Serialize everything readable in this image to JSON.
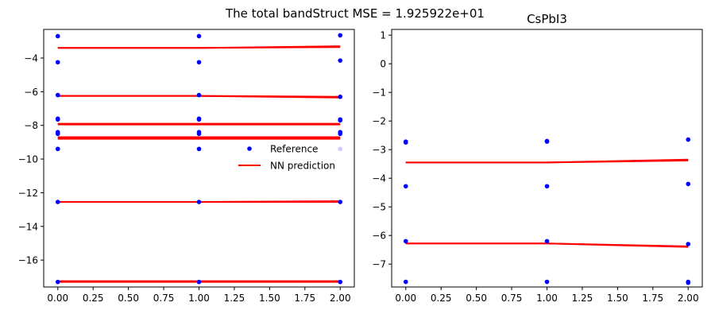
{
  "suptitle": "The total bandStruct MSE = 1.925922e+01",
  "colors": {
    "reference": "#0000ff",
    "prediction": "#ff0000"
  },
  "chart_data": [
    {
      "type": "line",
      "title": "",
      "xlabel": "",
      "ylabel": "",
      "xlim": [
        -0.1,
        2.1
      ],
      "ylim": [
        -17.6,
        -2.3
      ],
      "x_ticks": [
        0.0,
        0.25,
        0.5,
        0.75,
        1.0,
        1.25,
        1.5,
        1.75,
        2.0
      ],
      "x_tick_labels": [
        "0.00",
        "0.25",
        "0.50",
        "0.75",
        "1.00",
        "1.25",
        "1.50",
        "1.75",
        "2.00"
      ],
      "y_ticks": [
        -16,
        -14,
        -12,
        -10,
        -8,
        -6,
        -4
      ],
      "y_tick_labels": [
        "−16",
        "−14",
        "−12",
        "−10",
        "−8",
        "−6",
        "−4"
      ],
      "grid": false,
      "legend": {
        "placement": "center-right",
        "entries": [
          {
            "label": "Reference",
            "style": "marker"
          },
          {
            "label": "NN prediction",
            "style": "line"
          }
        ]
      },
      "series": [
        {
          "name": "Reference",
          "style": "scatter",
          "points": [
            [
              0,
              -2.7
            ],
            [
              0,
              -4.25
            ],
            [
              0,
              -6.2
            ],
            [
              0,
              -7.6
            ],
            [
              0,
              -7.65
            ],
            [
              0,
              -8.4
            ],
            [
              0,
              -8.5
            ],
            [
              0,
              -9.4
            ],
            [
              0,
              -12.55
            ],
            [
              0,
              -17.3
            ],
            [
              1,
              -2.7
            ],
            [
              1,
              -4.25
            ],
            [
              1,
              -6.2
            ],
            [
              1,
              -7.6
            ],
            [
              1,
              -7.65
            ],
            [
              1,
              -8.4
            ],
            [
              1,
              -8.5
            ],
            [
              1,
              -9.4
            ],
            [
              1,
              -12.55
            ],
            [
              1,
              -17.3
            ],
            [
              2,
              -2.65
            ],
            [
              2,
              -4.15
            ],
            [
              2,
              -6.3
            ],
            [
              2,
              -7.65
            ],
            [
              2,
              -7.7
            ],
            [
              2,
              -8.4
            ],
            [
              2,
              -8.5
            ],
            [
              2,
              -9.4
            ],
            [
              2,
              -12.55
            ],
            [
              2,
              -17.3
            ]
          ]
        },
        {
          "name": "NN prediction",
          "style": "lines",
          "lines": [
            {
              "x": [
                0,
                1,
                2
              ],
              "y": [
                -3.4,
                -3.4,
                -3.3
              ]
            },
            {
              "x": [
                0,
                1,
                2
              ],
              "y": [
                -3.4,
                -3.4,
                -3.35
              ]
            },
            {
              "x": [
                0,
                1,
                2
              ],
              "y": [
                -6.25,
                -6.25,
                -6.35
              ]
            },
            {
              "x": [
                0,
                1,
                2
              ],
              "y": [
                -6.25,
                -6.25,
                -6.3
              ]
            },
            {
              "x": [
                0,
                1,
                2
              ],
              "y": [
                -7.9,
                -7.9,
                -7.9
              ]
            },
            {
              "x": [
                0,
                1,
                2
              ],
              "y": [
                -7.95,
                -7.95,
                -7.95
              ]
            },
            {
              "x": [
                0,
                1,
                2
              ],
              "y": [
                -8.7,
                -8.7,
                -8.7
              ]
            },
            {
              "x": [
                0,
                1,
                2
              ],
              "y": [
                -8.75,
                -8.75,
                -8.75
              ]
            },
            {
              "x": [
                0,
                1,
                2
              ],
              "y": [
                -8.8,
                -8.8,
                -8.8
              ]
            },
            {
              "x": [
                0,
                1,
                2
              ],
              "y": [
                -12.55,
                -12.55,
                -12.5
              ]
            },
            {
              "x": [
                0,
                1,
                2
              ],
              "y": [
                -12.55,
                -12.55,
                -12.55
              ]
            },
            {
              "x": [
                0,
                1,
                2
              ],
              "y": [
                -17.25,
                -17.25,
                -17.25
              ]
            },
            {
              "x": [
                0,
                1,
                2
              ],
              "y": [
                -17.3,
                -17.3,
                -17.3
              ]
            }
          ]
        }
      ]
    },
    {
      "type": "line",
      "title": "CsPbI3",
      "xlabel": "",
      "ylabel": "",
      "xlim": [
        -0.1,
        2.1
      ],
      "ylim": [
        -7.8,
        1.2
      ],
      "x_ticks": [
        0.0,
        0.25,
        0.5,
        0.75,
        1.0,
        1.25,
        1.5,
        1.75,
        2.0
      ],
      "x_tick_labels": [
        "0.00",
        "0.25",
        "0.50",
        "0.75",
        "1.00",
        "1.25",
        "1.50",
        "1.75",
        "2.00"
      ],
      "y_ticks": [
        -7,
        -6,
        -5,
        -4,
        -3,
        -2,
        -1,
        0,
        1
      ],
      "y_tick_labels": [
        "−7",
        "−6",
        "−5",
        "−4",
        "−3",
        "−2",
        "−1",
        "0",
        "1"
      ],
      "grid": false,
      "series": [
        {
          "name": "",
          "style": "scatter",
          "points": [
            [
              0,
              -2.72
            ],
            [
              0,
              -2.75
            ],
            [
              0,
              -4.28
            ],
            [
              0,
              -6.2
            ],
            [
              0,
              -7.62
            ],
            [
              1,
              -2.7
            ],
            [
              1,
              -2.72
            ],
            [
              1,
              -4.28
            ],
            [
              1,
              -6.2
            ],
            [
              1,
              -7.62
            ],
            [
              2,
              -2.65
            ],
            [
              2,
              -4.2
            ],
            [
              2,
              -6.3
            ],
            [
              2,
              -7.62
            ],
            [
              2,
              -7.65
            ]
          ]
        },
        {
          "name": "",
          "style": "lines",
          "lines": [
            {
              "x": [
                0,
                1,
                2
              ],
              "y": [
                -3.45,
                -3.45,
                -3.35
              ]
            },
            {
              "x": [
                0,
                1,
                2
              ],
              "y": [
                -3.45,
                -3.45,
                -3.38
              ]
            },
            {
              "x": [
                0,
                1,
                2
              ],
              "y": [
                -6.28,
                -6.28,
                -6.4
              ]
            },
            {
              "x": [
                0,
                1,
                2
              ],
              "y": [
                -6.28,
                -6.28,
                -6.38
              ]
            }
          ]
        }
      ]
    }
  ]
}
